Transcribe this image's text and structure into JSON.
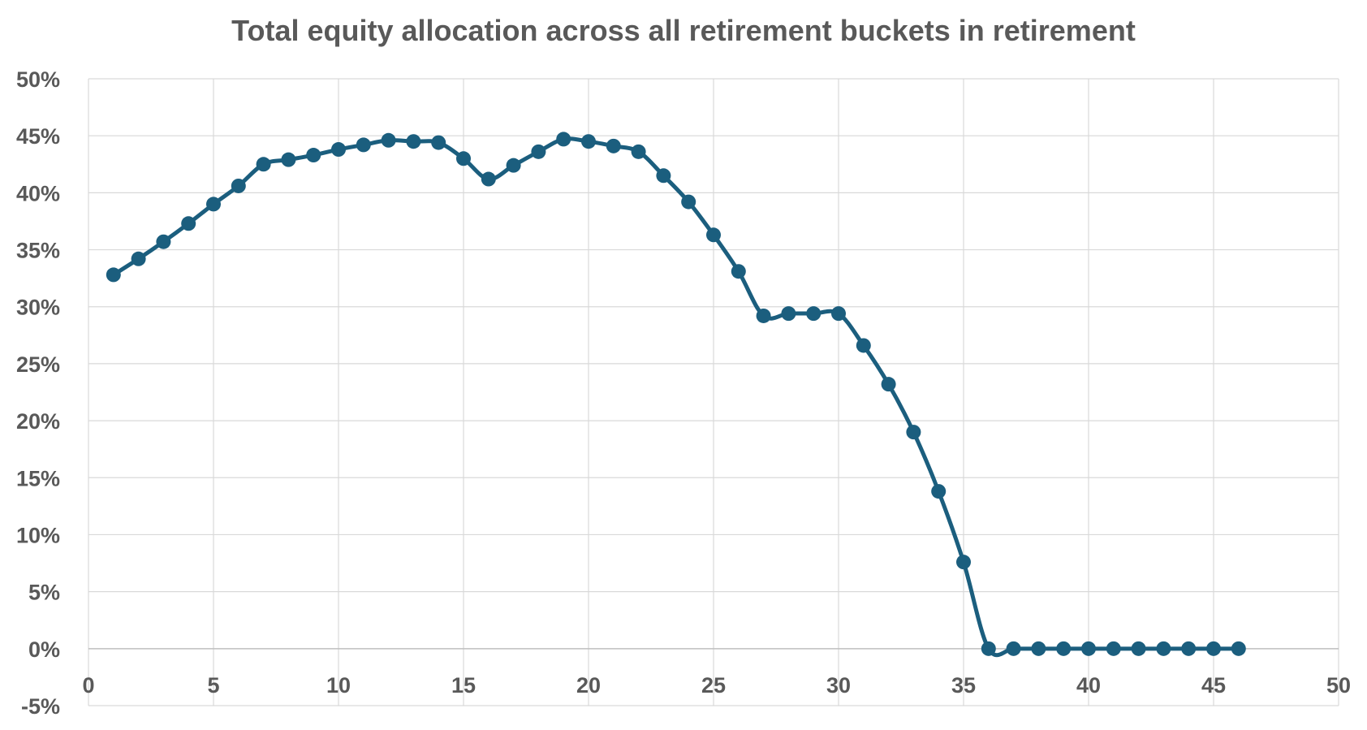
{
  "chart_data": {
    "type": "line",
    "title": "Total equity allocation across all retirement buckets in retirement",
    "xlabel": "",
    "ylabel": "",
    "xlim": [
      0,
      50
    ],
    "ylim": [
      -5,
      50
    ],
    "x_ticks": [
      "0",
      "5",
      "10",
      "15",
      "20",
      "25",
      "30",
      "35",
      "40",
      "45",
      "50"
    ],
    "y_ticks": [
      "-5%",
      "0%",
      "5%",
      "10%",
      "15%",
      "20%",
      "25%",
      "30%",
      "35%",
      "40%",
      "45%",
      "50%"
    ],
    "grid": true,
    "legend": "none",
    "smooth": true,
    "markers": true,
    "series": [
      {
        "color": "#1b5e7e",
        "x": [
          1,
          2,
          3,
          4,
          5,
          6,
          7,
          8,
          9,
          10,
          11,
          12,
          13,
          14,
          15,
          16,
          17,
          18,
          19,
          20,
          21,
          22,
          23,
          24,
          25,
          26,
          27,
          28,
          29,
          30,
          31,
          32,
          33,
          34,
          35,
          36,
          37,
          38,
          39,
          40,
          41,
          42,
          43,
          44,
          45,
          46
        ],
        "values": [
          32.8,
          34.2,
          35.7,
          37.3,
          39.0,
          40.6,
          42.5,
          42.9,
          43.3,
          43.8,
          44.2,
          44.6,
          44.5,
          44.4,
          43.0,
          41.2,
          42.4,
          43.6,
          44.7,
          44.5,
          44.1,
          43.6,
          41.5,
          39.2,
          36.3,
          33.1,
          29.2,
          29.4,
          29.4,
          29.4,
          26.6,
          23.2,
          19.0,
          13.8,
          7.6,
          0.0,
          0.0,
          0.0,
          0.0,
          0.0,
          0.0,
          0.0,
          0.0,
          0.0,
          0.0,
          0.0
        ]
      }
    ]
  }
}
